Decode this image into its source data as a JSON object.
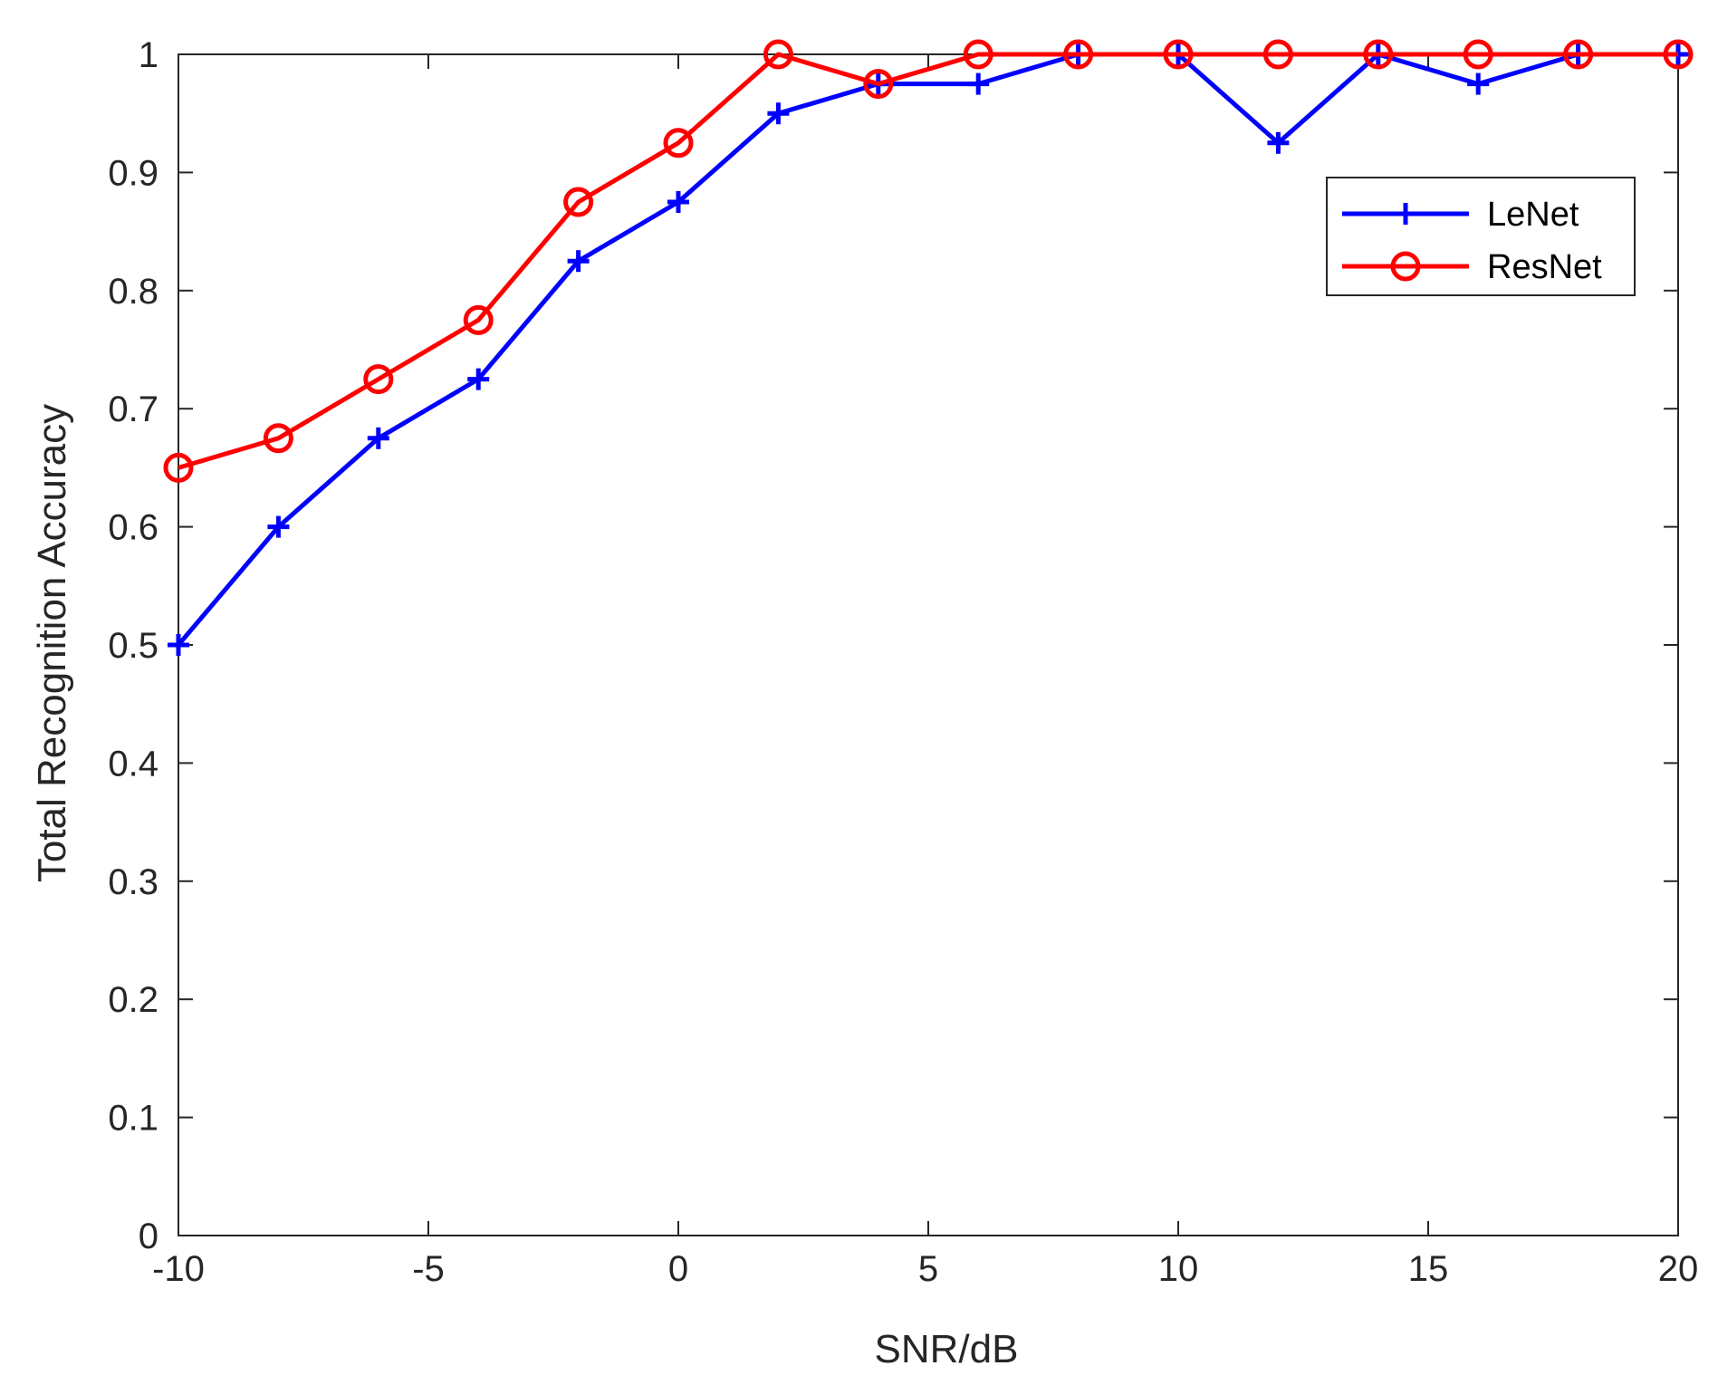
{
  "chart_data": {
    "type": "line",
    "title": "",
    "xlabel": "SNR/dB",
    "ylabel": "Total Recognition Accuracy",
    "xlim": [
      -10,
      20
    ],
    "ylim": [
      0,
      1
    ],
    "xticks": [
      -10,
      -5,
      0,
      5,
      10,
      15,
      20
    ],
    "yticks": [
      0,
      0.1,
      0.2,
      0.3,
      0.4,
      0.5,
      0.6,
      0.7,
      0.8,
      0.9,
      1
    ],
    "grid": false,
    "legend_position": "top-right",
    "x": [
      -10,
      -8,
      -6,
      -4,
      -2,
      0,
      2,
      4,
      6,
      8,
      10,
      12,
      14,
      16,
      18,
      20
    ],
    "series": [
      {
        "name": "LeNet",
        "color": "#0000ff",
        "marker": "plus",
        "values": [
          0.5,
          0.6,
          0.675,
          0.725,
          0.825,
          0.875,
          0.95,
          0.975,
          0.975,
          1,
          1,
          0.925,
          1,
          0.975,
          1,
          1
        ]
      },
      {
        "name": "ResNet",
        "color": "#ff0000",
        "marker": "circle",
        "values": [
          0.65,
          0.675,
          0.725,
          0.775,
          0.875,
          0.925,
          1,
          0.975,
          1,
          1,
          1,
          1,
          1,
          1,
          1,
          1
        ]
      }
    ]
  }
}
